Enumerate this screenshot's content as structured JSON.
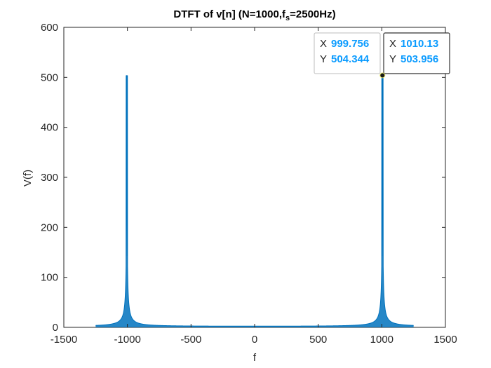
{
  "chart_data": {
    "type": "line",
    "title": "DTFT of v[n] (N=1000,",
    "title_sub_base": "f",
    "title_sub": "s",
    "title_end": "=2500Hz)",
    "xlabel": "f",
    "ylabel": "V(f)",
    "xlim": [
      -1500,
      1500
    ],
    "ylim": [
      0,
      600
    ],
    "xticks": [
      -1500,
      -1000,
      -500,
      0,
      500,
      1000,
      1500
    ],
    "xtick_labels": [
      "-1500",
      "-1000",
      "-500",
      "0",
      "500",
      "1000",
      "1500"
    ],
    "yticks": [
      0,
      100,
      200,
      300,
      400,
      500,
      600
    ],
    "ytick_labels": [
      "0",
      "100",
      "200",
      "300",
      "400",
      "500",
      "600"
    ],
    "grid": false,
    "line_color": "#0072bd",
    "series": [
      {
        "x_range": [
          -1250,
          1250
        ],
        "peaks": [
          {
            "x": -999.756,
            "y": 504.344
          },
          {
            "x": -1010.13,
            "y": 503.956
          },
          {
            "x": 999.756,
            "y": 504.344
          },
          {
            "x": 1010.13,
            "y": 503.956
          }
        ],
        "baseline": 1.5
      }
    ],
    "datatips": [
      {
        "x_label": "X",
        "x_value": "999.756",
        "y_label": "Y",
        "y_value": "504.344"
      },
      {
        "x_label": "X",
        "x_value": "1010.13",
        "y_label": "Y",
        "y_value": "503.956"
      }
    ],
    "marker_point": {
      "x": 1005,
      "y": 504
    }
  }
}
